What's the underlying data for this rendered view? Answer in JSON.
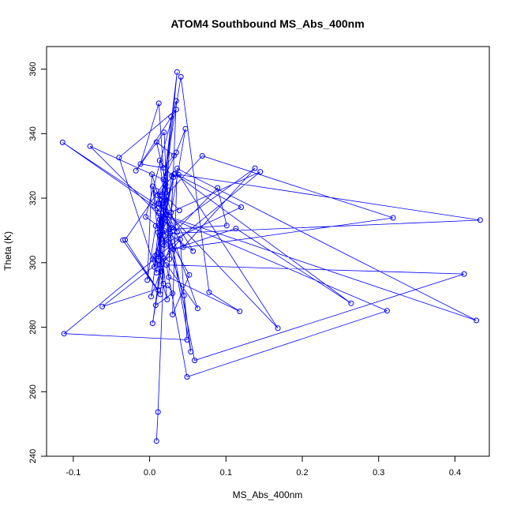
{
  "chart_data": {
    "type": "line",
    "title": "ATOM4 Southbound MS_Abs_400nm",
    "xlabel": "MS_Abs_400nm",
    "ylabel": "Theta (K)",
    "xlim": [
      -0.135,
      0.445
    ],
    "ylim": [
      240,
      367
    ],
    "x_ticks": [
      -0.1,
      0.0,
      0.1,
      0.2,
      0.3,
      0.4
    ],
    "x_tick_labels": [
      "-0.1",
      "0.0",
      "0.1",
      "0.2",
      "0.3",
      "0.4"
    ],
    "y_ticks": [
      240,
      260,
      280,
      300,
      320,
      340,
      360
    ],
    "y_tick_labels": [
      "240",
      "260",
      "280",
      "300",
      "320",
      "340",
      "360"
    ],
    "grid": false,
    "series": [
      {
        "color": "#0000ff",
        "marker": "open-circle",
        "x": [
          0.009,
          0.011,
          0.02,
          0.004,
          0.015,
          0.007,
          0.023,
          0.012,
          0.018,
          0.004,
          0.019,
          0.014,
          0.003,
          -0.003,
          0.008,
          0.022,
          0.013,
          0.029,
          0.011,
          0.016,
          0.006,
          0.021,
          0.011,
          0.027,
          0.002,
          0.015,
          0.024,
          0.009,
          0.032,
          0.018,
          -0.012,
          0.012,
          0.026,
          0.019,
          -0.018,
          0.035,
          -0.04,
          0.009,
          0.022,
          0.028,
          0.015,
          0.036,
          0.013,
          0.006,
          0.019,
          -0.114,
          0.01,
          0.029,
          -0.078,
          0.018,
          0.035,
          0.047,
          0.028,
          0.031,
          0.011,
          0.063,
          0.009,
          0.057,
          -0.005,
          0.035,
          0.025,
          0.118,
          0.078,
          0.041,
          0.016,
          0.013,
          0.04,
          0.049,
          -0.112,
          0.145,
          0.021,
          0.044,
          0.138,
          0.026,
          0.101,
          0.089,
          0.017,
          0.12,
          0.033,
          0.264,
          0.113,
          0.031,
          0.319,
          0.069,
          0.012,
          0.168,
          0.038,
          0.433,
          0.027,
          0.059,
          0.412,
          0.022,
          0.049,
          0.311,
          0.012,
          0.428,
          0.036,
          0.03,
          0.052,
          0.019,
          0.004,
          0.015,
          0.008,
          0.03,
          0.024,
          -0.062,
          0.019,
          0.014,
          -0.035,
          0.011,
          -0.032,
          0.021,
          0.016,
          0.045,
          0.054,
          0.023,
          0.013,
          0.032,
          0.01,
          0.036,
          0.022,
          0.039
        ],
        "y": [
          244.7,
          253.7,
          308.2,
          281.2,
          297.3,
          302.1,
          288.6,
          311.5,
          293.5,
          323.7,
          305.4,
          318.3,
          327.4,
          294.6,
          311.4,
          315.1,
          331.7,
          326.9,
          300.6,
          320.5,
          317.6,
          324.2,
          309.4,
          305.1,
          289.5,
          312.8,
          322.5,
          337.4,
          333.2,
          329.4,
          330.6,
          349.4,
          301.1,
          340.4,
          328.5,
          347.5,
          332.6,
          296.9,
          319.4,
          345.2,
          307.5,
          359.1,
          313.4,
          298.7,
          316.4,
          337.3,
          316.9,
          310.8,
          336.1,
          325.8,
          334.2,
          341.5,
          315.6,
          326.5,
          303.2,
          285.8,
          322.3,
          303.6,
          314.2,
          350.2,
          295.5,
          284.9,
          290.8,
          357.6,
          321.1,
          299.4,
          307.2,
          276.1,
          278.0,
          328.2,
          314.9,
          304.8,
          329.3,
          310.3,
          311.5,
          323.2,
          305.7,
          317.2,
          327.6,
          287.4,
          310.6,
          304.2,
          313.9,
          333.1,
          318.3,
          279.7,
          327.3,
          313.2,
          309.1,
          269.7,
          296.5,
          299.3,
          264.6,
          285.1,
          315.3,
          282.1,
          329.2,
          283.9,
          296.2,
          309.9,
          301.1,
          302.4,
          286.8,
          290.5,
          292.9,
          286.4,
          301.4,
          290.2,
          307.0,
          291.5,
          307.1,
          325.4,
          311.9,
          289.8,
          272.4,
          312.8,
          308.4,
          327.4,
          320.9,
          309.5,
          320.5,
          316.2
        ]
      }
    ]
  }
}
